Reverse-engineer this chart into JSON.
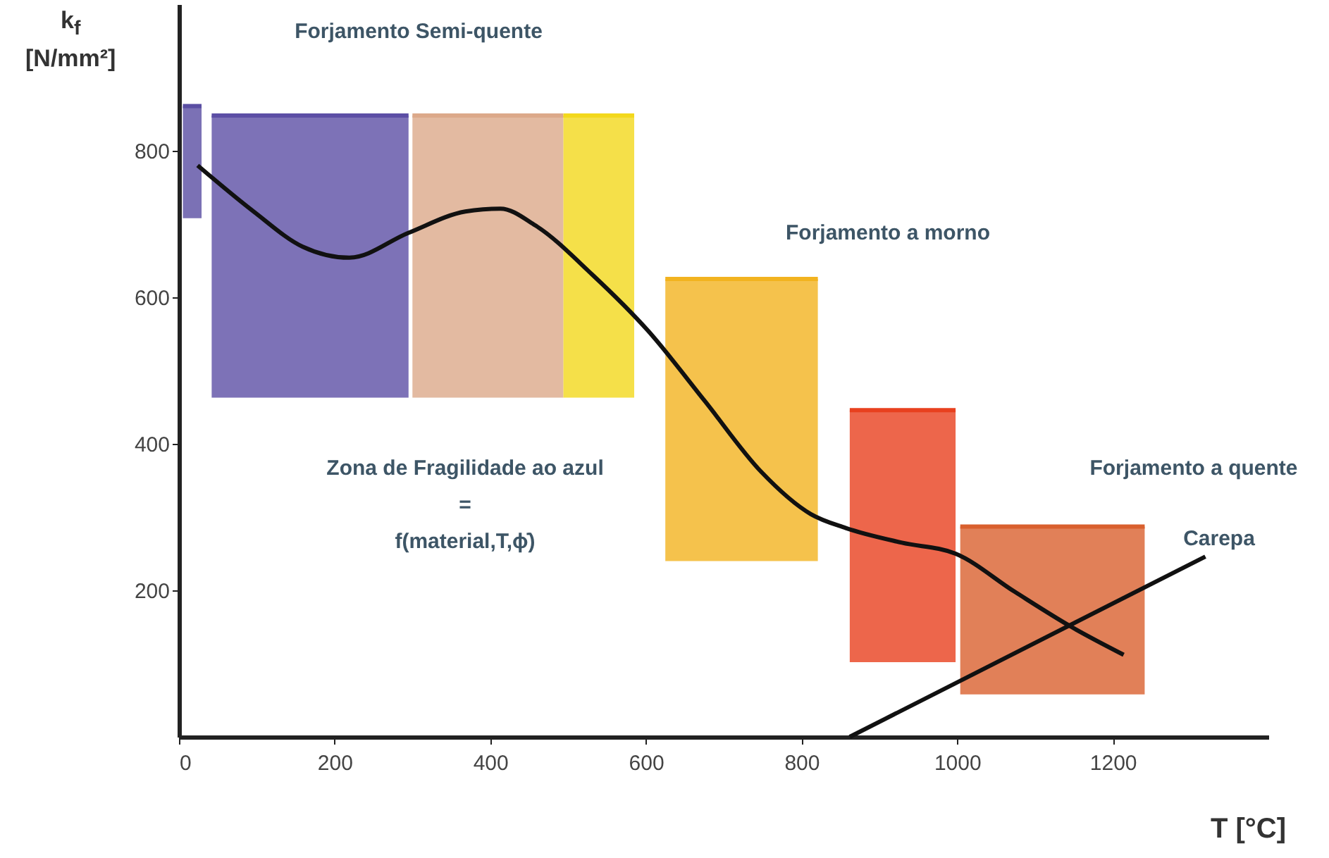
{
  "chart_data": {
    "type": "line",
    "xlabel": "T [°C]",
    "ylabel": "k$_{f}$\n[N/mm²]",
    "xlim": [
      0,
      1400
    ],
    "ylim": [
      0,
      1000
    ],
    "xticks": [
      0,
      200,
      400,
      600,
      800,
      1000,
      1200
    ],
    "yticks": [
      200,
      400,
      600,
      800
    ],
    "grid": false,
    "marker": "none",
    "series": [
      {
        "color": "#5a4ea3",
        "x": [
          5,
          29
        ],
        "values": [
          861,
          861
        ],
        "upper": [
          861,
          861
        ],
        "lower": [
          708,
          708
        ]
      },
      {
        "color": "#5c4fa5",
        "x": [
          42,
          295
        ],
        "values": [
          848,
          848
        ],
        "upper": [
          848,
          848
        ],
        "lower": [
          463,
          463
        ]
      },
      {
        "color": "#dca98a",
        "x": [
          300,
          494
        ],
        "values": [
          848,
          848
        ],
        "upper": [
          848,
          848
        ],
        "lower": [
          463,
          463
        ]
      },
      {
        "color": "#f3d81c",
        "x": [
          494,
          585
        ],
        "values": [
          848,
          848
        ],
        "upper": [
          848,
          848
        ],
        "lower": [
          463,
          463
        ]
      },
      {
        "color": "#f2b31f",
        "x": [
          625,
          821
        ],
        "values": [
          625,
          625
        ],
        "upper": [
          625,
          625
        ],
        "lower": [
          240,
          240
        ]
      },
      {
        "color": "#e8401e",
        "x": [
          862,
          998
        ],
        "values": [
          446,
          446
        ],
        "upper": [
          446,
          446
        ],
        "lower": [
          102,
          102
        ]
      },
      {
        "color": "#d9602e",
        "x": [
          1004,
          1241
        ],
        "values": [
          287,
          287
        ],
        "upper": [
          287,
          287
        ],
        "lower": [
          58,
          58
        ]
      },
      {
        "color": "#111111",
        "x": [
          24,
          96,
          159,
          219,
          295,
          368,
          413,
          458,
          531,
          603,
          676,
          748,
          812,
          857,
          929,
          998,
          1074,
          1147,
          1214
        ],
        "values": [
          780,
          717,
          669,
          654,
          688,
          717,
          721,
          698,
          631,
          554,
          458,
          362,
          304,
          285,
          265,
          250,
          198,
          150,
          112
        ]
      },
      {
        "color": "#111111",
        "x": [
          862,
          1319
        ],
        "values": [
          0,
          246
        ]
      }
    ],
    "annotations": [
      "Forjamento Semi-quente",
      "Forjamento a morno",
      "Zona de Fragilidade ao azul\n=\nf(material,T,ϕ̇)",
      "Forjamento a quente",
      "Carepa"
    ]
  }
}
